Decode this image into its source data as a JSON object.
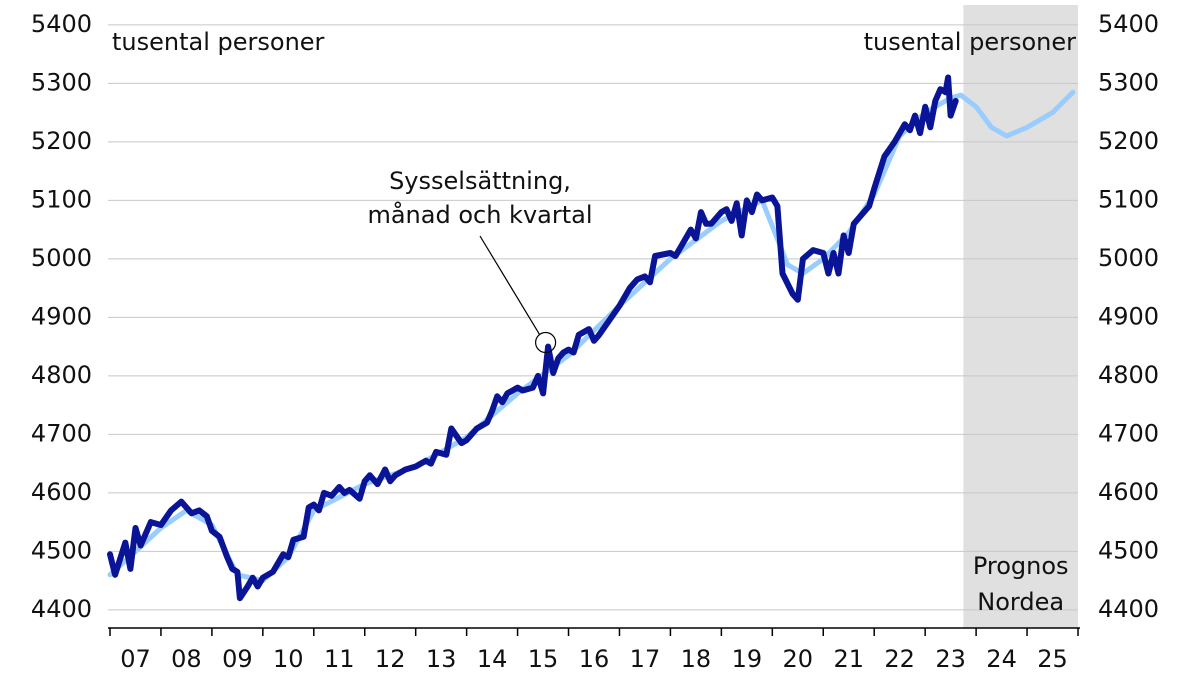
{
  "chart_data": {
    "type": "line",
    "y_unit_left": "tusental personer",
    "y_unit_right": "tusental personer",
    "annotation": {
      "lines": [
        "Sysselsättning,",
        "månad och kvartal"
      ],
      "xy": [
        2015.55,
        4857
      ]
    },
    "shaded_region": {
      "xlim": [
        2023.75,
        2026
      ],
      "lines": [
        "Prognos",
        "Nordea"
      ],
      "color": "#e0e0e0"
    },
    "xlim": [
      2007,
      2026
    ],
    "xtick_marks": [
      2007,
      2008,
      2009,
      2010,
      2011,
      2012,
      2013,
      2014,
      2015,
      2016,
      2017,
      2018,
      2019,
      2020,
      2021,
      2022,
      2023,
      2024,
      2025,
      2026
    ],
    "xticks": [
      {
        "value": 2007.5,
        "label": "07"
      },
      {
        "value": 2008.5,
        "label": "08"
      },
      {
        "value": 2009.5,
        "label": "09"
      },
      {
        "value": 2010.5,
        "label": "10"
      },
      {
        "value": 2011.5,
        "label": "11"
      },
      {
        "value": 2012.5,
        "label": "12"
      },
      {
        "value": 2013.5,
        "label": "13"
      },
      {
        "value": 2014.5,
        "label": "14"
      },
      {
        "value": 2015.5,
        "label": "15"
      },
      {
        "value": 2016.5,
        "label": "16"
      },
      {
        "value": 2017.5,
        "label": "17"
      },
      {
        "value": 2018.5,
        "label": "18"
      },
      {
        "value": 2019.5,
        "label": "19"
      },
      {
        "value": 2020.5,
        "label": "20"
      },
      {
        "value": 2021.5,
        "label": "21"
      },
      {
        "value": 2022.5,
        "label": "22"
      },
      {
        "value": 2023.5,
        "label": "23"
      },
      {
        "value": 2024.5,
        "label": "24"
      },
      {
        "value": 2025.5,
        "label": "25"
      }
    ],
    "ylim": [
      4369,
      5434
    ],
    "yticks": [
      4400,
      4500,
      4600,
      4700,
      4800,
      4900,
      5000,
      5100,
      5200,
      5300,
      5400
    ],
    "y2lim": [
      4369,
      5434
    ],
    "y2ticks": [
      4400,
      4500,
      4600,
      4700,
      4800,
      4900,
      5000,
      5100,
      5200,
      5300,
      5400
    ],
    "grid": true,
    "series": [
      {
        "color": "#99ccff",
        "width": 5,
        "x": [
          2007.0,
          2008.0,
          2008.5,
          2009.0,
          2009.5,
          2010.0,
          2010.5,
          2011.0,
          2012.0,
          2013.0,
          2014.0,
          2015.0,
          2016.0,
          2017.0,
          2018.0,
          2019.0,
          2019.8,
          2020.3,
          2020.6,
          2021.0,
          2021.5,
          2022.0,
          2022.5,
          2023.0,
          2023.5,
          2023.7,
          2024.0,
          2024.3,
          2024.6,
          2025.0,
          2025.5,
          2025.9
        ],
        "values": [
          4460,
          4540,
          4570,
          4545,
          4460,
          4450,
          4490,
          4570,
          4615,
          4645,
          4695,
          4770,
          4835,
          4920,
          5000,
          5065,
          5100,
          4990,
          4975,
          5000,
          5045,
          5110,
          5210,
          5250,
          5275,
          5280,
          5260,
          5225,
          5210,
          5225,
          5250,
          5285
        ]
      },
      {
        "color": "#0a1496",
        "width": 6,
        "x": [
          2007.0,
          2007.1,
          2007.3,
          2007.4,
          2007.5,
          2007.6,
          2007.8,
          2008.0,
          2008.2,
          2008.4,
          2008.6,
          2008.75,
          2008.9,
          2009.0,
          2009.15,
          2009.3,
          2009.4,
          2009.5,
          2009.55,
          2009.7,
          2009.8,
          2009.9,
          2010.0,
          2010.2,
          2010.4,
          2010.5,
          2010.6,
          2010.8,
          2010.9,
          2011.0,
          2011.1,
          2011.2,
          2011.35,
          2011.5,
          2011.6,
          2011.7,
          2011.9,
          2012.0,
          2012.1,
          2012.25,
          2012.4,
          2012.5,
          2012.6,
          2012.8,
          2013.0,
          2013.2,
          2013.3,
          2013.4,
          2013.6,
          2013.7,
          2013.9,
          2014.0,
          2014.2,
          2014.4,
          2014.5,
          2014.6,
          2014.7,
          2014.8,
          2015.0,
          2015.1,
          2015.3,
          2015.4,
          2015.5,
          2015.6,
          2015.7,
          2015.8,
          2015.9,
          2016.0,
          2016.1,
          2016.2,
          2016.4,
          2016.5,
          2016.6,
          2016.8,
          2017.0,
          2017.2,
          2017.35,
          2017.5,
          2017.6,
          2017.7,
          2018.0,
          2018.1,
          2018.2,
          2018.4,
          2018.5,
          2018.6,
          2018.7,
          2018.8,
          2019.0,
          2019.1,
          2019.2,
          2019.3,
          2019.4,
          2019.5,
          2019.6,
          2019.7,
          2019.8,
          2020.0,
          2020.1,
          2020.2,
          2020.4,
          2020.5,
          2020.6,
          2020.8,
          2021.0,
          2021.1,
          2021.2,
          2021.3,
          2021.4,
          2021.5,
          2021.6,
          2021.9,
          2022.0,
          2022.2,
          2022.4,
          2022.6,
          2022.7,
          2022.8,
          2022.9,
          2023.0,
          2023.1,
          2023.2,
          2023.3,
          2023.4,
          2023.45,
          2023.5,
          2023.6
        ],
        "values": [
          4495,
          4460,
          4515,
          4470,
          4540,
          4510,
          4550,
          4545,
          4570,
          4585,
          4565,
          4570,
          4560,
          4535,
          4525,
          4490,
          4470,
          4465,
          4420,
          4440,
          4455,
          4440,
          4455,
          4465,
          4495,
          4490,
          4520,
          4525,
          4575,
          4580,
          4570,
          4600,
          4595,
          4610,
          4600,
          4605,
          4590,
          4620,
          4630,
          4615,
          4640,
          4620,
          4630,
          4640,
          4645,
          4655,
          4650,
          4670,
          4665,
          4710,
          4685,
          4690,
          4710,
          4720,
          4740,
          4765,
          4755,
          4770,
          4780,
          4775,
          4780,
          4800,
          4770,
          4850,
          4805,
          4830,
          4840,
          4845,
          4840,
          4870,
          4880,
          4860,
          4870,
          4895,
          4920,
          4950,
          4965,
          4970,
          4960,
          5005,
          5010,
          5005,
          5020,
          5050,
          5035,
          5080,
          5060,
          5060,
          5080,
          5085,
          5065,
          5095,
          5040,
          5100,
          5080,
          5110,
          5100,
          5105,
          5090,
          4975,
          4940,
          4930,
          5000,
          5015,
          5010,
          4975,
          5010,
          4975,
          5040,
          5010,
          5060,
          5090,
          5120,
          5175,
          5200,
          5230,
          5220,
          5245,
          5215,
          5260,
          5225,
          5270,
          5290,
          5285,
          5310,
          5245,
          5270
        ]
      }
    ]
  }
}
